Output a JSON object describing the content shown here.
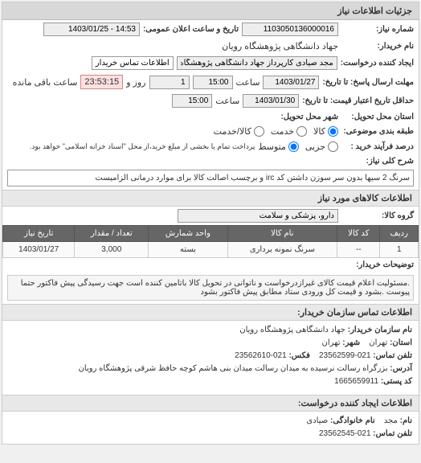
{
  "panel": {
    "title": "جزئیات اطلاعات نیاز"
  },
  "header": {
    "number_label": "شماره نیاز:",
    "number": "1103050136000016",
    "announce_label": "تاریخ و ساعت اعلان عمومی:",
    "announce": "14:53 - 1403/01/25",
    "buyer_label": "نام خریدار:",
    "buyer": "جهاد دانشگاهی پژوهشگاه رویان",
    "creator_label": "ایجاد کننده درخواست:",
    "creator": "مجد صیادی کارپرداز جهاد دانشگاهی پژوهشگاه رویان",
    "contact_btn": "اطلاعات تماس خریدار"
  },
  "deadlines": {
    "send_label": "مهلت ارسال پاسخ: تا تاریخ:",
    "send_date": "1403/01/27",
    "time_label": "ساعت",
    "send_time": "15:00",
    "day_label": "روز و",
    "days": "1",
    "remain": "23:53:15",
    "remain_label": "ساعت باقی مانده",
    "validity_label": "حداقل تاریخ اعتبار قیمت: تا تاریخ:",
    "validity_date": "1403/01/30",
    "validity_time": "15:00"
  },
  "location": {
    "province_label": "استان محل تحویل:",
    "city_label": "شهر محل تحویل:"
  },
  "classification": {
    "group_label": "طبقه بندی موضوعی:",
    "opt_goods": "کالا",
    "opt_service": "خدمت",
    "opt_both": "کالا/خدمت",
    "scale_label": "درصد فرآیند خرید :",
    "opt_small": "جزیی",
    "opt_medium": "متوسط",
    "note": "پرداخت تمام یا بخشی از مبلغ خرید،از محل \"اسناد خزانه اسلامی\" خواهد بود."
  },
  "need": {
    "title_label": "شرح کلی نیاز:",
    "title": "سرنگ 2 سیها بدون سر سوزن داشتن کد irc و برچسب اصالت کالا برای موارد درمانی الزامیست"
  },
  "goods": {
    "section": "اطلاعات کالاهای مورد نیاز",
    "group_label": "گروه کالا:",
    "group": "دارو، پزشکی و سلامت",
    "cols": {
      "row": "ردیف",
      "code": "کد کالا",
      "name": "نام کالا",
      "unit": "واحد شمارش",
      "qty": "تعداد / مقدار",
      "date": "تاریخ نیاز"
    },
    "rows": [
      {
        "row": "1",
        "code": "--",
        "name": "سرنگ نمونه برداری",
        "unit": "بسته",
        "qty": "3,000",
        "date": "1403/01/27"
      }
    ]
  },
  "explain": {
    "label": "توضیحات خریدار:",
    "text": ".مسئولیت اعلام قیمت کالای غیرازدرخواست و ناتوانی در تحویل کالا باتامین کننده است جهت رسیدگی پیش فاکتور حتما پیوست .بشود و قیمت کل ورودی ستاد مطابق پیش فاکتور بشود"
  },
  "contact": {
    "section": "اطلاعات تماس سازمان خریدار:",
    "org_label": "نام سازمان خریدار:",
    "org": "جهاد دانشگاهی پژوهشگاه رویان",
    "city_label": "شهر:",
    "city": "تهران",
    "province_label": "استان:",
    "province": "تهران",
    "phone_label": "تلفن تماس:",
    "phone": "021-23562599",
    "fax_label": "فکس:",
    "fax": "021-23562610",
    "address_label": "آدرس:",
    "address": "بزرگراه رسالت نرسیده به میدان رسالت میدان بنی هاشم کوچه حافظ شرقی پژوهشگاه رویان",
    "postal_label": "کد پستی:",
    "postal": "1665659911",
    "creator_section": "اطلاعات ایجاد کننده درخواست:",
    "name_label": "نام:",
    "name": "مجد",
    "family_label": "نام خانوادگی:",
    "family": "صیادی",
    "cphone_label": "تلفن تماس:",
    "cphone": "021-23562545"
  }
}
